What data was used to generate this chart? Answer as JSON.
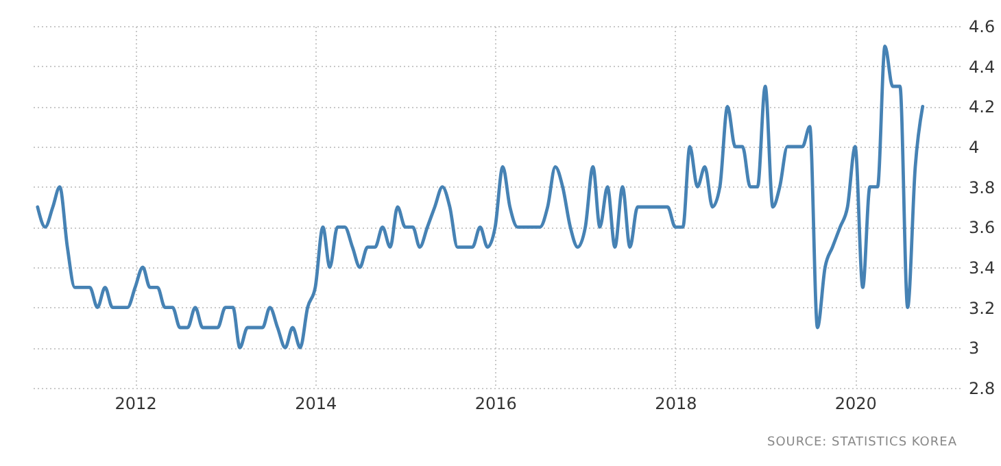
{
  "chart_data": {
    "type": "line",
    "x": [
      "2010-12",
      "2011-01",
      "2011-02",
      "2011-03",
      "2011-04",
      "2011-05",
      "2011-06",
      "2011-07",
      "2011-08",
      "2011-09",
      "2011-10",
      "2011-11",
      "2011-12",
      "2012-01",
      "2012-02",
      "2012-03",
      "2012-04",
      "2012-05",
      "2012-06",
      "2012-07",
      "2012-08",
      "2012-09",
      "2012-10",
      "2012-11",
      "2012-12",
      "2013-01",
      "2013-02",
      "2013-03",
      "2013-04",
      "2013-05",
      "2013-06",
      "2013-07",
      "2013-08",
      "2013-09",
      "2013-10",
      "2013-11",
      "2013-12",
      "2014-01",
      "2014-02",
      "2014-03",
      "2014-04",
      "2014-05",
      "2014-06",
      "2014-07",
      "2014-08",
      "2014-09",
      "2014-10",
      "2014-11",
      "2014-12",
      "2015-01",
      "2015-02",
      "2015-03",
      "2015-04",
      "2015-05",
      "2015-06",
      "2015-07",
      "2015-08",
      "2015-09",
      "2015-10",
      "2015-11",
      "2015-12",
      "2016-01",
      "2016-02",
      "2016-03",
      "2016-04",
      "2016-05",
      "2016-06",
      "2016-07",
      "2016-08",
      "2016-09",
      "2016-10",
      "2016-11",
      "2016-12",
      "2017-01",
      "2017-02",
      "2017-03",
      "2017-04",
      "2017-05",
      "2017-06",
      "2017-07",
      "2017-08",
      "2017-09",
      "2017-10",
      "2017-11",
      "2017-12",
      "2018-01",
      "2018-02",
      "2018-03",
      "2018-04",
      "2018-05",
      "2018-06",
      "2018-07",
      "2018-08",
      "2018-09",
      "2018-10",
      "2018-11",
      "2018-12",
      "2019-01",
      "2019-02",
      "2019-03",
      "2019-04",
      "2019-05",
      "2019-06",
      "2019-07",
      "2019-08",
      "2019-09",
      "2019-10",
      "2019-11",
      "2019-12",
      "2020-01",
      "2020-02",
      "2020-03",
      "2020-04",
      "2020-05",
      "2020-06",
      "2020-07",
      "2020-08",
      "2020-09",
      "2020-10"
    ],
    "series": [
      {
        "color": "#4682b4",
        "values": [
          3.7,
          3.6,
          3.7,
          3.8,
          3.5,
          3.3,
          3.3,
          3.3,
          3.2,
          3.3,
          3.2,
          3.2,
          3.2,
          3.3,
          3.4,
          3.3,
          3.3,
          3.2,
          3.2,
          3.1,
          3.1,
          3.2,
          3.1,
          3.1,
          3.1,
          3.2,
          3.2,
          3.0,
          3.1,
          3.1,
          3.1,
          3.2,
          3.1,
          3.0,
          3.1,
          3.0,
          3.2,
          3.3,
          3.6,
          3.4,
          3.6,
          3.6,
          3.5,
          3.4,
          3.5,
          3.5,
          3.6,
          3.5,
          3.7,
          3.6,
          3.6,
          3.5,
          3.6,
          3.7,
          3.8,
          3.7,
          3.5,
          3.5,
          3.5,
          3.6,
          3.5,
          3.6,
          3.9,
          3.7,
          3.6,
          3.6,
          3.6,
          3.6,
          3.7,
          3.9,
          3.8,
          3.6,
          3.5,
          3.6,
          3.9,
          3.6,
          3.8,
          3.5,
          3.8,
          3.5,
          3.7,
          3.7,
          3.7,
          3.7,
          3.7,
          3.6,
          3.6,
          4.0,
          3.8,
          3.9,
          3.7,
          3.8,
          4.2,
          4.0,
          4.0,
          3.8,
          3.8,
          4.3,
          3.7,
          3.8,
          4.0,
          4.0,
          4.0,
          4.1,
          3.1,
          3.4,
          3.5,
          3.6,
          3.7,
          4.0,
          3.3,
          3.8,
          3.8,
          4.5,
          4.3,
          4.3,
          3.2,
          3.9,
          4.2
        ]
      }
    ],
    "xlim": [
      "2010-11",
      "2021-03"
    ],
    "xticks": [
      "2012",
      "2014",
      "2016",
      "2018",
      "2020"
    ],
    "ylim": [
      2.8,
      4.6
    ],
    "yticks": [
      2.8,
      3,
      3.2,
      3.4,
      3.6,
      3.8,
      4,
      4.2,
      4.4,
      4.6
    ],
    "grid": true,
    "line_style": "solid",
    "annotations": [
      "SOURCE: STATISTICS KOREA"
    ]
  }
}
